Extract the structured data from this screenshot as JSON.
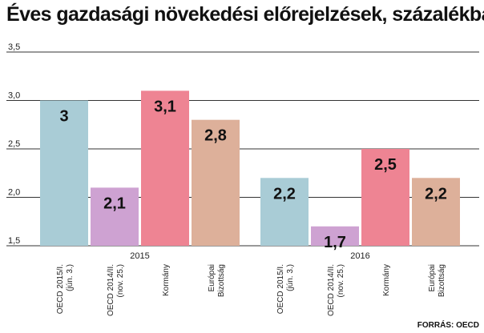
{
  "title": "Éves gazdasági növekedési előrejelzések, százalékban",
  "source": "FORRÁS: OECD",
  "chart_data": {
    "type": "bar",
    "ylim": [
      1.5,
      3.5
    ],
    "yticks": [
      "3,5",
      "3,0",
      "2,5",
      "2,0",
      "1,5"
    ],
    "ytick_values": [
      3.5,
      3.0,
      2.5,
      2.0,
      1.5
    ],
    "grid": true,
    "groups": [
      {
        "label": "2015",
        "bars": [
          {
            "category": [
              "OECD 2015/I.",
              "(jún. 3.)"
            ],
            "value": 3.0,
            "label": "3",
            "color": "#a9ccd6"
          },
          {
            "category": [
              "OECD 2014/II.",
              "(nov. 25.)"
            ],
            "value": 2.1,
            "label": "2,1",
            "color": "#cea2d2"
          },
          {
            "category": [
              "Kormány"
            ],
            "value": 3.1,
            "label": "3,1",
            "color": "#ee8493"
          },
          {
            "category": [
              "Európai",
              "Bizottság"
            ],
            "value": 2.8,
            "label": "2,8",
            "color": "#ddb09a"
          }
        ]
      },
      {
        "label": "2016",
        "bars": [
          {
            "category": [
              "OECD 2015/I.",
              "(jún. 3.)"
            ],
            "value": 2.2,
            "label": "2,2",
            "color": "#a9ccd6"
          },
          {
            "category": [
              "OECD 2014/II.",
              "(nov. 25.)"
            ],
            "value": 1.7,
            "label": "1,7",
            "color": "#cea2d2"
          },
          {
            "category": [
              "Kormány"
            ],
            "value": 2.5,
            "label": "2,5",
            "color": "#ee8493"
          },
          {
            "category": [
              "Európai",
              "Bizottság"
            ],
            "value": 2.2,
            "label": "2,2",
            "color": "#ddb09a"
          }
        ]
      }
    ]
  }
}
